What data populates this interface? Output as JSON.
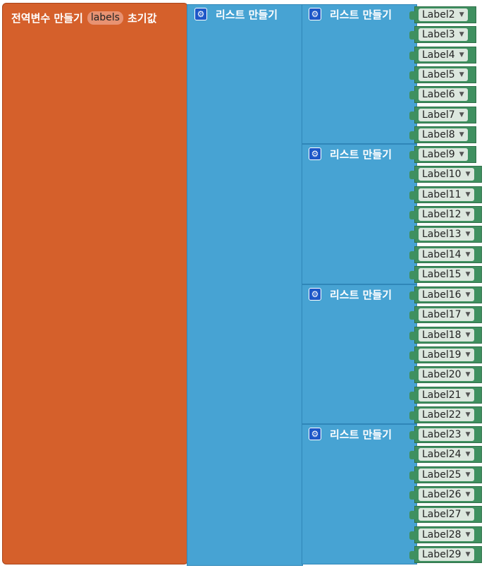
{
  "global": {
    "prefix": "전역변수 만들기",
    "name": "labels",
    "suffix": "초기값"
  },
  "outer_list": {
    "label": "리스트 만들기",
    "icon": "gear-icon"
  },
  "inner_lists": [
    {
      "label": "리스트 만들기",
      "labels": [
        "Label2",
        "Label3",
        "Label4",
        "Label5",
        "Label6",
        "Label7",
        "Label8"
      ]
    },
    {
      "label": "리스트 만들기",
      "labels": [
        "Label9",
        "Label10",
        "Label11",
        "Label12",
        "Label13",
        "Label14",
        "Label15"
      ]
    },
    {
      "label": "리스트 만들기",
      "labels": [
        "Label16",
        "Label17",
        "Label18",
        "Label19",
        "Label20",
        "Label21",
        "Label22"
      ]
    },
    {
      "label": "리스트 만들기",
      "labels": [
        "Label23",
        "Label24",
        "Label25",
        "Label26",
        "Label27",
        "Label28",
        "Label29"
      ]
    }
  ],
  "colors": {
    "variable_block": "#d5602b",
    "list_block": "#47a3d3",
    "component_block": "#3f9060"
  }
}
